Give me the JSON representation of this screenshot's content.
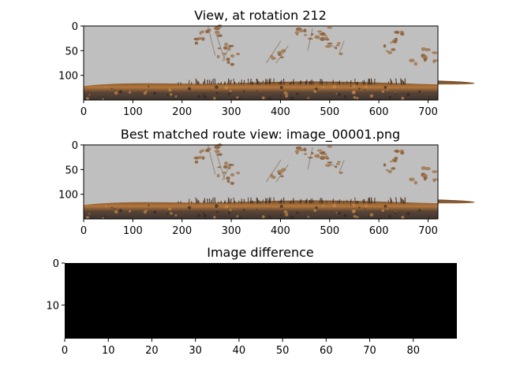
{
  "chart_data": [
    {
      "type": "image",
      "title": "View, at rotation 212",
      "xticks": [
        0,
        100,
        200,
        300,
        400,
        500,
        600,
        700
      ],
      "yticks": [
        0,
        50,
        100
      ],
      "xlim": [
        0,
        720
      ],
      "ylim": [
        150,
        0
      ]
    },
    {
      "type": "image",
      "title": "Best matched route view: image_00001.png",
      "xticks": [
        0,
        100,
        200,
        300,
        400,
        500,
        600,
        700
      ],
      "yticks": [
        0,
        50,
        100
      ],
      "xlim": [
        0,
        720
      ],
      "ylim": [
        150,
        0
      ]
    },
    {
      "type": "heatmap",
      "title": "Image difference",
      "xticks": [
        0,
        10,
        20,
        30,
        40,
        50,
        60,
        70,
        80
      ],
      "yticks": [
        0,
        10
      ],
      "xlim": [
        0,
        90
      ],
      "ylim": [
        18,
        0
      ],
      "fill": "#000000"
    }
  ],
  "colors": {
    "sky": "#bfbfbf",
    "ground_dark": "#4a3a2e",
    "ground_mid": "#7a5a3a",
    "ground_light": "#b07a40",
    "plant": "#8a6a4a",
    "difference": "#000000"
  }
}
